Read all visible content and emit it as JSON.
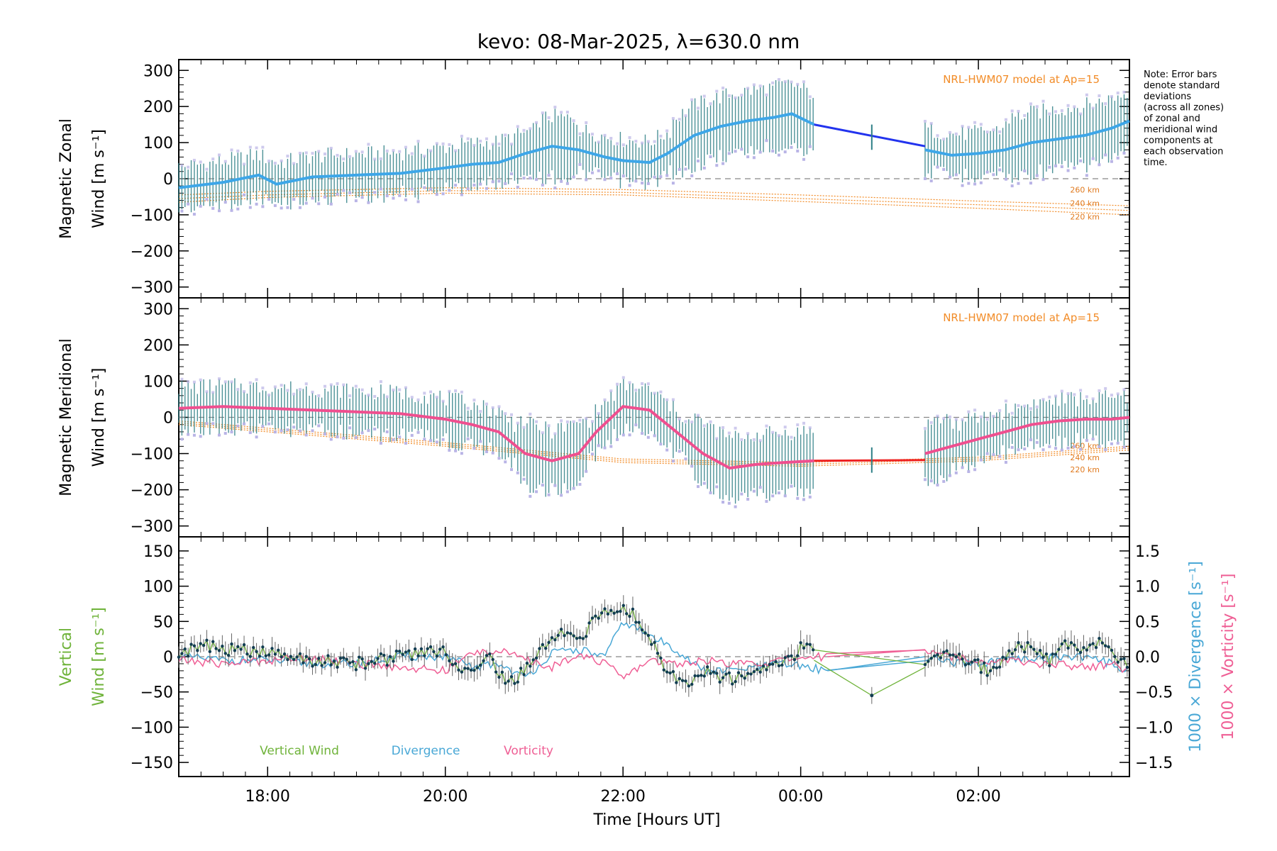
{
  "colors": {
    "zonal_mean": "#3da6e8",
    "meridional_mean": "#ef4f8f",
    "vertical": "#6fb33a",
    "divergence": "#4aa8d6",
    "vorticity": "#ef5f95",
    "model": "#f28c28",
    "errbar": "#2e7f86",
    "spread": "#b9b4e6",
    "gap_zonal": "#2233ee",
    "gap_merid": "#ee2222"
  },
  "chart_data": [
    {
      "type": "line",
      "panel": "zonal",
      "title": "kevo: 08-Mar-2025, λ=630.0 nm",
      "ylabel_line1": "Magnetic Zonal",
      "ylabel_line2": "Wind [m s⁻¹]",
      "ylim": [
        -330,
        330
      ],
      "yticks": [
        "300",
        "200",
        "100",
        "0",
        "−100",
        "−200",
        "−300"
      ],
      "ytick_values": [
        300,
        200,
        100,
        0,
        -100,
        -200,
        -300
      ],
      "model_label": "NRL-HWM07 model at Ap=15",
      "model_alt_labels": [
        "260 km",
        "240 km",
        "220 km"
      ],
      "note": [
        "Note: Error bars",
        "denote standard",
        "deviations",
        "(across all zones)",
        "of zonal and",
        "meridional wind",
        "components at",
        "each observation",
        "time."
      ],
      "mean": {
        "x": [
          17.0,
          17.5,
          17.9,
          18.1,
          18.5,
          19.0,
          19.5,
          20.0,
          20.3,
          20.6,
          20.9,
          21.2,
          21.5,
          21.8,
          22.0,
          22.3,
          22.5,
          22.8,
          23.1,
          23.4,
          23.7,
          23.9,
          24.15
        ],
        "y": [
          -25,
          -10,
          10,
          -15,
          5,
          10,
          15,
          30,
          40,
          45,
          70,
          90,
          80,
          60,
          50,
          45,
          70,
          120,
          145,
          160,
          170,
          180,
          150
        ],
        "x2": [
          25.4,
          25.7,
          26.0,
          26.3,
          26.6,
          26.9,
          27.2,
          27.5,
          27.7
        ],
        "y2": [
          80,
          65,
          70,
          80,
          100,
          110,
          120,
          140,
          160
        ]
      },
      "gap": {
        "x": [
          24.15,
          25.4
        ],
        "y": [
          150,
          90
        ],
        "point_x": 24.8,
        "point_y": 115
      },
      "model": [
        {
          "alt": "260 km",
          "x": [
            17.0,
            18.0,
            20.0,
            22.0,
            24.0,
            26.0,
            27.7
          ],
          "y": [
            -45,
            -35,
            -25,
            -30,
            -45,
            -62,
            -75
          ]
        },
        {
          "alt": "240 km",
          "x": [
            17.0,
            18.0,
            20.0,
            22.0,
            24.0,
            26.0,
            27.7
          ],
          "y": [
            -55,
            -45,
            -33,
            -38,
            -55,
            -72,
            -88
          ]
        },
        {
          "alt": "220 km",
          "x": [
            17.0,
            18.0,
            20.0,
            22.0,
            24.0,
            26.0,
            27.7
          ],
          "y": [
            -65,
            -52,
            -40,
            -45,
            -63,
            -82,
            -100
          ]
        }
      ]
    },
    {
      "type": "line",
      "panel": "meridional",
      "ylabel_line1": "Magnetic Meridional",
      "ylabel_line2": "Wind [m s⁻¹]",
      "ylim": [
        -330,
        330
      ],
      "yticks": [
        "300",
        "200",
        "100",
        "0",
        "−100",
        "−200",
        "−300"
      ],
      "ytick_values": [
        300,
        200,
        100,
        0,
        -100,
        -200,
        -300
      ],
      "model_label": "NRL-HWM07 model at Ap=15",
      "model_alt_labels": [
        "260 km",
        "240 km",
        "220 km"
      ],
      "mean": {
        "x": [
          17.0,
          17.5,
          18.0,
          18.5,
          19.0,
          19.5,
          20.0,
          20.3,
          20.6,
          20.9,
          21.2,
          21.5,
          21.7,
          22.0,
          22.3,
          22.6,
          22.9,
          23.2,
          23.5,
          23.8,
          24.15
        ],
        "y": [
          25,
          30,
          25,
          20,
          15,
          10,
          -5,
          -20,
          -40,
          -100,
          -120,
          -100,
          -40,
          30,
          20,
          -40,
          -100,
          -140,
          -130,
          -125,
          -120
        ],
        "x2": [
          25.4,
          25.7,
          26.0,
          26.3,
          26.6,
          26.9,
          27.2,
          27.5,
          27.7
        ],
        "y2": [
          -100,
          -80,
          -60,
          -40,
          -20,
          -10,
          -5,
          -5,
          0
        ]
      },
      "gap": {
        "x": [
          24.15,
          25.4
        ],
        "y": [
          -120,
          -118
        ],
        "point_x": 24.8,
        "point_y": -118
      },
      "model": [
        {
          "alt": "260 km",
          "x": [
            17.0,
            18.0,
            20.0,
            22.0,
            24.0,
            26.0,
            27.7
          ],
          "y": [
            -10,
            -30,
            -70,
            -115,
            -125,
            -110,
            -80
          ]
        },
        {
          "alt": "240 km",
          "x": [
            17.0,
            18.0,
            20.0,
            22.0,
            24.0,
            26.0,
            27.7
          ],
          "y": [
            -15,
            -35,
            -75,
            -120,
            -130,
            -115,
            -85
          ]
        },
        {
          "alt": "220 km",
          "x": [
            17.0,
            18.0,
            20.0,
            22.0,
            24.0,
            26.0,
            27.7
          ],
          "y": [
            -20,
            -40,
            -80,
            -125,
            -135,
            -120,
            -90
          ]
        }
      ]
    },
    {
      "type": "line",
      "panel": "vertical",
      "ylabel_line1": "Vertical",
      "ylabel_line2": "Wind [m s⁻¹]",
      "ylim": [
        -170,
        170
      ],
      "yticks": [
        "150",
        "100",
        "50",
        "0",
        "−50",
        "−100",
        "−150"
      ],
      "ytick_values": [
        150,
        100,
        50,
        0,
        -50,
        -100,
        -150
      ],
      "y2label_div": "1000 × Divergence [s⁻¹]",
      "y2label_vort": "1000 × Vorticity [s⁻¹]",
      "y2lim": [
        -1.7,
        1.7
      ],
      "y2ticks": [
        "1.5",
        "1.0",
        "0.5",
        "0.0",
        "−0.5",
        "−1.0",
        "−1.5"
      ],
      "y2tick_values": [
        1.5,
        1.0,
        0.5,
        0.0,
        -0.5,
        -1.0,
        -1.5
      ],
      "legend": [
        "Vertical Wind",
        "Divergence",
        "Vorticity"
      ],
      "xlabel": "Time [Hours UT]",
      "xticks": [
        "18:00",
        "20:00",
        "22:00",
        "00:00",
        "02:00"
      ],
      "xtick_values": [
        18,
        20,
        22,
        24,
        26
      ],
      "xlim": [
        17.0,
        27.7
      ],
      "vertical": {
        "x": [
          17.0,
          17.3,
          17.6,
          18.0,
          18.5,
          19.0,
          19.5,
          19.8,
          20.0,
          20.2,
          20.5,
          20.7,
          20.9,
          21.1,
          21.3,
          21.5,
          21.7,
          21.9,
          22.1,
          22.3,
          22.5,
          22.7,
          22.9,
          23.1,
          23.3,
          23.6,
          23.9,
          24.1,
          24.15,
          24.8,
          25.4,
          25.6,
          25.9,
          26.1,
          26.4,
          26.6,
          26.8,
          27.0,
          27.2,
          27.4,
          27.7
        ],
        "y": [
          5,
          15,
          10,
          5,
          -5,
          -10,
          0,
          10,
          5,
          -20,
          0,
          -40,
          -20,
          10,
          40,
          20,
          55,
          70,
          60,
          30,
          -20,
          -40,
          -20,
          -30,
          -30,
          -20,
          0,
          25,
          -5,
          -55,
          -15,
          10,
          -5,
          -20,
          10,
          15,
          -5,
          20,
          10,
          20,
          -15
        ],
        "errbar_x": [
          24.8
        ],
        "errbar_y": [
          -55
        ]
      },
      "divergence": {
        "x": [
          17.0,
          17.5,
          18.0,
          18.5,
          19.0,
          19.5,
          20.0,
          20.3,
          20.6,
          20.9,
          21.2,
          21.5,
          21.8,
          22.0,
          22.3,
          22.6,
          22.9,
          23.2,
          23.5,
          23.8,
          24.1,
          24.3,
          25.4,
          25.7,
          26.0,
          26.3,
          26.6,
          26.9,
          27.2,
          27.5,
          27.7
        ],
        "y": [
          0.0,
          -0.05,
          -0.05,
          -0.1,
          -0.1,
          0.0,
          0.0,
          -0.15,
          -0.1,
          -0.3,
          0.05,
          0.1,
          0.0,
          0.5,
          0.3,
          0.1,
          -0.2,
          -0.2,
          -0.15,
          -0.1,
          -0.15,
          -0.2,
          0.0,
          -0.1,
          -0.1,
          -0.05,
          -0.05,
          0.0,
          0.0,
          -0.1,
          -0.2
        ]
      },
      "vorticity": {
        "x": [
          17.0,
          17.5,
          18.0,
          18.5,
          19.0,
          19.5,
          20.0,
          20.3,
          20.6,
          20.9,
          21.2,
          21.5,
          21.8,
          22.0,
          22.3,
          22.6,
          22.9,
          23.2,
          23.5,
          23.8,
          24.1,
          24.3,
          25.4,
          25.7,
          26.0,
          26.3,
          26.6,
          26.9,
          27.2,
          27.5,
          27.7
        ],
        "y": [
          -0.05,
          -0.1,
          -0.05,
          0.0,
          -0.1,
          -0.15,
          -0.2,
          0.05,
          0.1,
          -0.05,
          -0.15,
          0.05,
          -0.1,
          -0.3,
          -0.05,
          -0.1,
          -0.05,
          -0.1,
          -0.1,
          -0.05,
          0.0,
          0.0,
          0.1,
          0.0,
          -0.05,
          -0.05,
          -0.1,
          -0.1,
          -0.15,
          -0.1,
          -0.2
        ]
      }
    }
  ]
}
